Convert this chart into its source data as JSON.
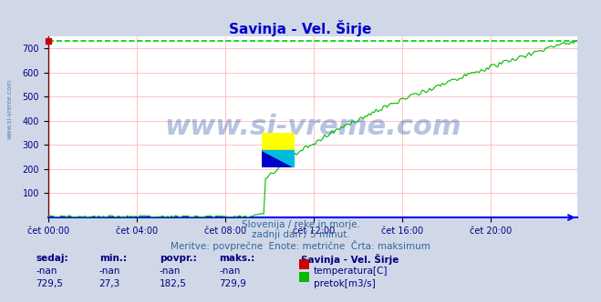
{
  "title": "Savinja - Vel. Širje",
  "title_color": "#0000cc",
  "bg_color": "#d0d8e8",
  "plot_bg_color": "#ffffff",
  "grid_color": "#ffaaaa",
  "xlabel_color": "#000080",
  "ylabel_color": "#000080",
  "x_axis_color": "#0000ff",
  "y_axis_color": "#800000",
  "x_ticks": [
    "čet 00:00",
    "čet 04:00",
    "čet 08:00",
    "čet 12:00",
    "čet 16:00",
    "čet 20:00"
  ],
  "x_tick_positions": [
    0,
    48,
    96,
    144,
    192,
    240
  ],
  "ylim": [
    0,
    750
  ],
  "yticks": [
    100,
    200,
    300,
    400,
    500,
    600,
    700
  ],
  "total_points": 288,
  "max_line_value": 729.9,
  "max_line_color": "#00cc00",
  "flow_color": "#00bb00",
  "temp_color": "#cc0000",
  "watermark": "www.si-vreme.com",
  "watermark_color": "#3355aa",
  "sub_text1": "Slovenija / reke in morje.",
  "sub_text2": "zadnji dan / 5 minut.",
  "sub_text3": "Meritve: povprečne  Enote: metrične  Črta: maksimum",
  "sub_text_color": "#336699",
  "legend_title": "Savinja - Vel. Širje",
  "legend_title_color": "#000080",
  "table_headers": [
    "sedaj:",
    "min.:",
    "povpr.:",
    "maks.:"
  ],
  "table_row1": [
    "-nan",
    "-nan",
    "-nan",
    "-nan"
  ],
  "table_row2": [
    "729,5",
    "27,3",
    "182,5",
    "729,9"
  ],
  "table_color": "#000080",
  "sidebar_text": "www.si-vreme.com",
  "sidebar_color": "#336699"
}
